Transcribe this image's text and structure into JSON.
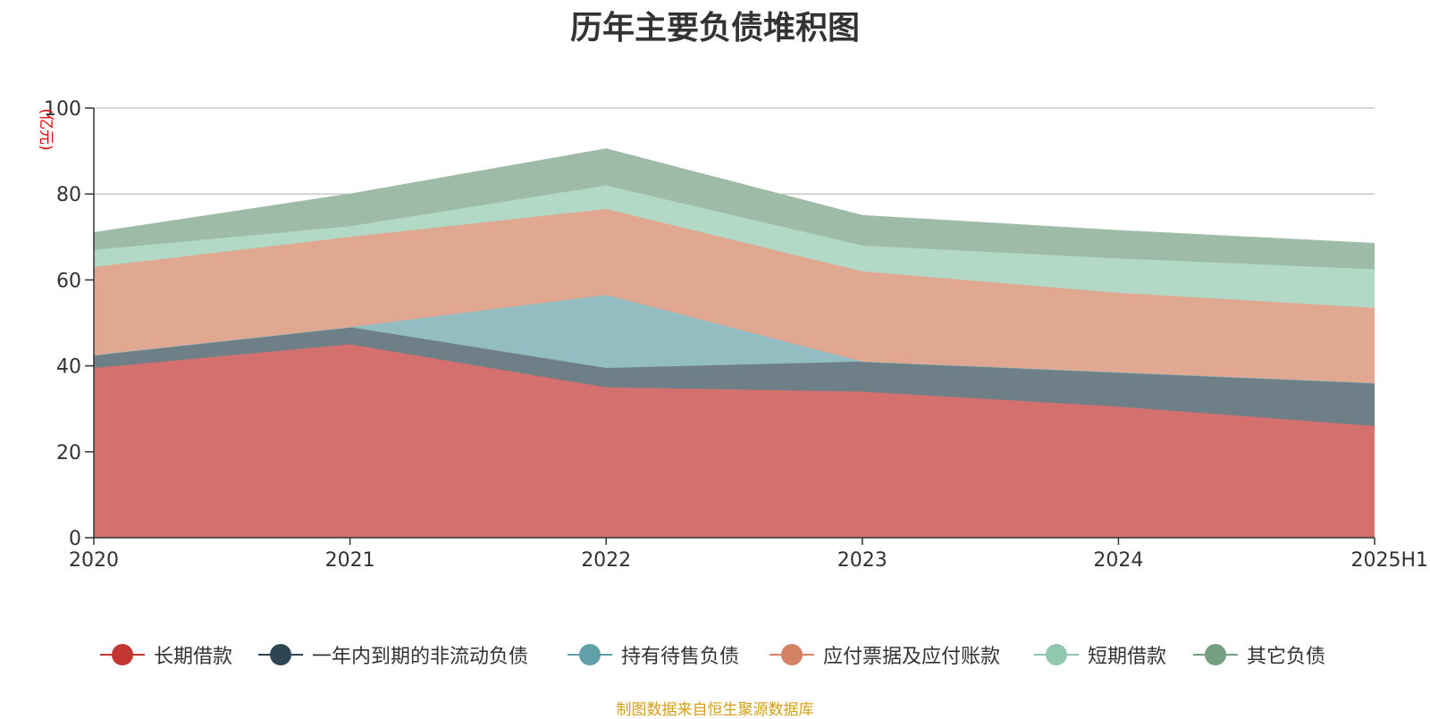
{
  "chart_data": {
    "type": "area",
    "stacked": true,
    "title": "历年主要负债堆积图",
    "ylabel": "(亿元)",
    "xlabel": "",
    "categories": [
      "2020",
      "2021",
      "2022",
      "2023",
      "2024",
      "2025H1"
    ],
    "ylim": [
      0,
      100
    ],
    "yticks": [
      0,
      20,
      40,
      60,
      80,
      100
    ],
    "grid": true,
    "legend_position": "bottom",
    "series": [
      {
        "name": "长期借款",
        "color": "#c23531",
        "fill": "#d4706e",
        "values": [
          39.5,
          45,
          35,
          34,
          30.5,
          26
        ]
      },
      {
        "name": "一年内到期的非流动负债",
        "color": "#2f4554",
        "fill": "#6f7f88",
        "values": [
          3,
          4,
          4.5,
          7,
          8,
          10
        ]
      },
      {
        "name": "持有待售负债",
        "color": "#61a0a8",
        "fill": "#94bdc1",
        "values": [
          0,
          0,
          17,
          0,
          0,
          0
        ]
      },
      {
        "name": "应付票据及应付账款",
        "color": "#d48265",
        "fill": "#e0a791",
        "values": [
          20.5,
          21,
          20,
          21,
          18.5,
          17.5
        ]
      },
      {
        "name": "短期借款",
        "color": "#91c7ae",
        "fill": "#b2d8c6",
        "values": [
          4,
          2.5,
          5.5,
          6,
          8,
          9
        ]
      },
      {
        "name": "其它负债",
        "color": "#749f83",
        "fill": "#9ebba7",
        "values": [
          4,
          7.5,
          8.5,
          7,
          6.5,
          6
        ]
      }
    ]
  },
  "footer": {
    "source": "制图数据来自恒生聚源数据库"
  }
}
